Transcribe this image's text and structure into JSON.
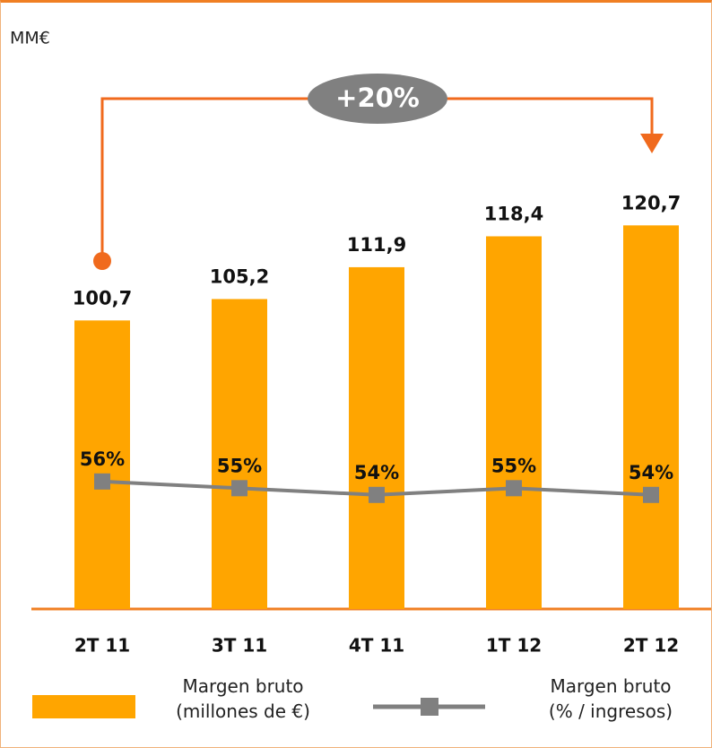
{
  "chart_data": {
    "type": "bar",
    "unit_label": "MM€",
    "annotation": "+20%",
    "categories": [
      "2T 11",
      "3T 11",
      "4T 11",
      "1T 12",
      "2T 12"
    ],
    "series": [
      {
        "name": "Margen bruto\n(millones de €)",
        "type": "bar",
        "color": "#ffa500",
        "values": [
          100.7,
          105.2,
          111.9,
          118.4,
          120.7
        ],
        "value_labels": [
          "100,7",
          "105,2",
          "111,9",
          "118,4",
          "120,7"
        ]
      },
      {
        "name": "Margen bruto\n(% / ingresos)",
        "type": "line",
        "axis": "y2",
        "color": "#808080",
        "values": [
          56,
          55,
          54,
          55,
          54
        ],
        "value_labels": [
          "56%",
          "55%",
          "54%",
          "55%",
          "54%"
        ]
      }
    ],
    "ylim": [
      40,
      160
    ],
    "y2lim": [
      37,
      122
    ],
    "grid": false
  }
}
